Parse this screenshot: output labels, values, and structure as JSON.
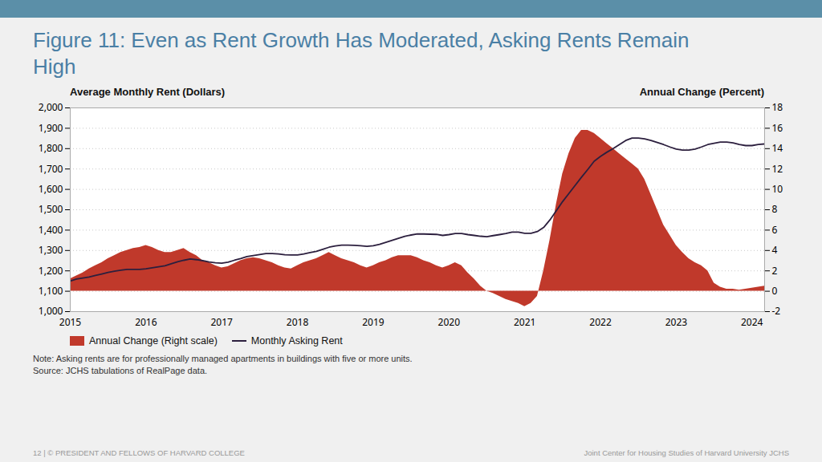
{
  "chart_data": {
    "type": "line",
    "title": "Figure 11: Even as Rent Growth Has Moderated, Asking Rents Remain High",
    "ylabel": "Average Monthly Rent (Dollars)",
    "y2label": "Annual Change (Percent)",
    "annotations": [
      "Note: Asking rents are for professionally managed apartments in buildings with five or more units.",
      "Source: JCHS tabulations of RealPage data.",
      "12 | © PRESIDENT AND FELLOWS OF HARVARD COLLEGE",
      "Joint Center for Housing Studies of Harvard University   JCHS"
    ],
    "x": [
      2015.0,
      2015.083,
      2015.167,
      2015.25,
      2015.333,
      2015.417,
      2015.5,
      2015.583,
      2015.667,
      2015.75,
      2015.833,
      2015.917,
      2016.0,
      2016.083,
      2016.167,
      2016.25,
      2016.333,
      2016.417,
      2016.5,
      2016.583,
      2016.667,
      2016.75,
      2016.833,
      2016.917,
      2017.0,
      2017.083,
      2017.167,
      2017.25,
      2017.333,
      2017.417,
      2017.5,
      2017.583,
      2017.667,
      2017.75,
      2017.833,
      2017.917,
      2018.0,
      2018.083,
      2018.167,
      2018.25,
      2018.333,
      2018.417,
      2018.5,
      2018.583,
      2018.667,
      2018.75,
      2018.833,
      2018.917,
      2019.0,
      2019.083,
      2019.167,
      2019.25,
      2019.333,
      2019.417,
      2019.5,
      2019.583,
      2019.667,
      2019.75,
      2019.833,
      2019.917,
      2020.0,
      2020.083,
      2020.167,
      2020.25,
      2020.333,
      2020.417,
      2020.5,
      2020.583,
      2020.667,
      2020.75,
      2020.833,
      2020.917,
      2021.0,
      2021.083,
      2021.167,
      2021.25,
      2021.333,
      2021.417,
      2021.5,
      2021.583,
      2021.667,
      2021.75,
      2021.833,
      2021.917,
      2022.0,
      2022.083,
      2022.167,
      2022.25,
      2022.333,
      2022.417,
      2022.5,
      2022.583,
      2022.667,
      2022.75,
      2022.833,
      2022.917,
      2023.0,
      2023.083,
      2023.167,
      2023.25,
      2023.333,
      2023.417,
      2023.5,
      2023.583,
      2023.667,
      2023.75,
      2023.833,
      2023.917,
      2024.0,
      2024.083,
      2024.167
    ],
    "xlim": [
      2015.0,
      2024.167
    ],
    "xticks": [
      2015,
      2016,
      2017,
      2018,
      2019,
      2020,
      2021,
      2022,
      2023,
      2024
    ],
    "ylim": [
      1000,
      2000
    ],
    "yticks": [
      {
        "value": 1000,
        "label": "1,000"
      },
      {
        "value": 1100,
        "label": "1,100"
      },
      {
        "value": 1200,
        "label": "1,200"
      },
      {
        "value": 1300,
        "label": "1,300"
      },
      {
        "value": 1400,
        "label": "1,400"
      },
      {
        "value": 1500,
        "label": "1,500"
      },
      {
        "value": 1600,
        "label": "1,600"
      },
      {
        "value": 1700,
        "label": "1,700"
      },
      {
        "value": 1800,
        "label": "1,800"
      },
      {
        "value": 1900,
        "label": "1,900"
      },
      {
        "value": 2000,
        "label": "2,000"
      }
    ],
    "y2lim": [
      -2,
      18
    ],
    "y2ticks": [
      -2,
      0,
      2,
      4,
      6,
      8,
      10,
      12,
      14,
      16,
      18
    ],
    "grid": true,
    "legend": "bottom",
    "series": [
      {
        "name": "Annual Change (Right scale)",
        "type": "area",
        "color": "#c0392b",
        "axis": "y2",
        "values": [
          1.2,
          1.5,
          1.8,
          2.2,
          2.5,
          2.8,
          3.2,
          3.5,
          3.8,
          4.0,
          4.2,
          4.3,
          4.5,
          4.3,
          4.0,
          3.8,
          3.8,
          4.0,
          4.2,
          3.8,
          3.5,
          3.0,
          2.8,
          2.5,
          2.3,
          2.4,
          2.7,
          3.0,
          3.2,
          3.3,
          3.2,
          3.0,
          2.8,
          2.5,
          2.3,
          2.2,
          2.5,
          2.8,
          3.0,
          3.2,
          3.5,
          3.8,
          3.5,
          3.2,
          3.0,
          2.8,
          2.5,
          2.3,
          2.5,
          2.8,
          3.0,
          3.3,
          3.5,
          3.5,
          3.5,
          3.3,
          3.0,
          2.8,
          2.5,
          2.3,
          2.5,
          2.8,
          2.5,
          1.8,
          1.2,
          0.5,
          0.0,
          -0.2,
          -0.5,
          -0.8,
          -1.0,
          -1.2,
          -1.5,
          -1.2,
          -0.5,
          2.0,
          5.0,
          8.5,
          11.5,
          13.5,
          15.0,
          15.8,
          15.8,
          15.5,
          15.0,
          14.5,
          14.0,
          13.5,
          13.0,
          12.5,
          12.0,
          11.0,
          9.5,
          8.0,
          6.5,
          5.5,
          4.5,
          3.8,
          3.2,
          2.8,
          2.5,
          2.0,
          0.8,
          0.4,
          0.2,
          0.2,
          0.1,
          0.2,
          0.3,
          0.4,
          0.5
        ]
      },
      {
        "name": "Monthly Asking Rent",
        "type": "line",
        "color": "#2c1f3e",
        "values": [
          1150,
          1160,
          1165,
          1170,
          1178,
          1185,
          1192,
          1198,
          1203,
          1207,
          1207,
          1207,
          1210,
          1215,
          1220,
          1225,
          1235,
          1245,
          1252,
          1258,
          1255,
          1250,
          1244,
          1240,
          1238,
          1243,
          1252,
          1260,
          1270,
          1275,
          1280,
          1285,
          1285,
          1283,
          1279,
          1278,
          1278,
          1283,
          1290,
          1296,
          1306,
          1316,
          1322,
          1326,
          1326,
          1325,
          1323,
          1320,
          1323,
          1330,
          1340,
          1350,
          1360,
          1370,
          1376,
          1381,
          1381,
          1380,
          1379,
          1374,
          1378,
          1383,
          1383,
          1378,
          1374,
          1370,
          1368,
          1373,
          1378,
          1383,
          1390,
          1390,
          1384,
          1384,
          1393,
          1413,
          1450,
          1495,
          1540,
          1580,
          1620,
          1660,
          1698,
          1738,
          1762,
          1782,
          1800,
          1820,
          1840,
          1852,
          1852,
          1848,
          1840,
          1830,
          1820,
          1808,
          1798,
          1793,
          1793,
          1798,
          1808,
          1820,
          1826,
          1832,
          1832,
          1828,
          1820,
          1815,
          1815,
          1820,
          1823
        ]
      }
    ]
  }
}
